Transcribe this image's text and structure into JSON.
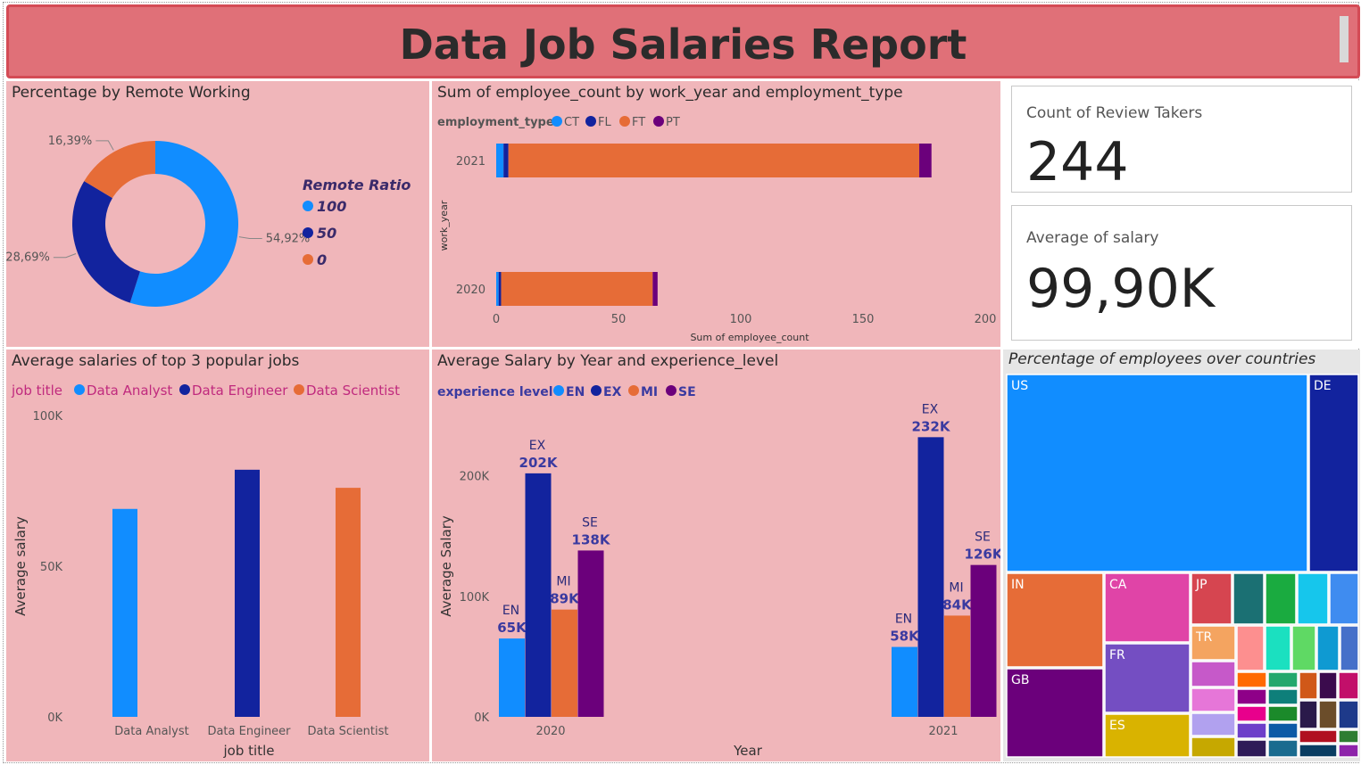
{
  "header": {
    "title": "Data Job Salaries Report"
  },
  "panels": {
    "remote": {
      "title": "Percentage by Remote Working"
    },
    "employment": {
      "title": "Sum of employee_count by work_year and employment_type"
    },
    "top_jobs": {
      "title": "Average salaries of top 3 popular jobs"
    },
    "salary_year": {
      "title": "Average Salary by Year and experience_level"
    },
    "countries": {
      "title": "Percentage of employees over countries"
    }
  },
  "cards": {
    "review_takers": {
      "label": "Count of Review Takers",
      "value": "244"
    },
    "avg_salary": {
      "label": "Average of salary",
      "value": "99,90K"
    }
  },
  "colors": {
    "blue": "#118dff",
    "navy": "#12239e",
    "orange": "#e66c37",
    "purple": "#6b007b",
    "panel": "#f0b6ba",
    "title_bg": "#e07078"
  },
  "chart_data": [
    {
      "id": "remote",
      "type": "pie",
      "legend_title": "Remote Ratio",
      "slices": [
        {
          "name": "100",
          "value": 54.92,
          "label": "54,92%",
          "color": "#118dff"
        },
        {
          "name": "50",
          "value": 28.69,
          "label": "28,69%",
          "color": "#12239e"
        },
        {
          "name": "0",
          "value": 16.39,
          "label": "16,39%",
          "color": "#e66c37"
        }
      ]
    },
    {
      "id": "employment",
      "type": "bar",
      "orientation": "horizontal",
      "stacked": true,
      "legend_title": "employment_type",
      "categories": [
        "2021",
        "2020"
      ],
      "series": [
        {
          "name": "CT",
          "values": [
            3,
            1
          ],
          "color": "#118dff"
        },
        {
          "name": "FL",
          "values": [
            2,
            1
          ],
          "color": "#12239e"
        },
        {
          "name": "FT",
          "values": [
            168,
            62
          ],
          "color": "#e66c37"
        },
        {
          "name": "PT",
          "values": [
            5,
            2
          ],
          "color": "#6b007b"
        }
      ],
      "xlabel": "Sum of employee_count",
      "ylabel": "work_year",
      "xlim": [
        0,
        200
      ],
      "xticks": [
        "0",
        "50",
        "100",
        "150",
        "200"
      ]
    },
    {
      "id": "top_jobs",
      "type": "bar",
      "legend_title": "job title",
      "categories": [
        "Data Analyst",
        "Data Engineer",
        "Data Scientist"
      ],
      "values": [
        69000,
        82000,
        76000
      ],
      "colors": [
        "#118dff",
        "#12239e",
        "#e66c37"
      ],
      "legend": [
        "Data Analyst",
        "Data Engineer",
        "Data Scientist"
      ],
      "xlabel": "job title",
      "ylabel": "Average salary",
      "ylim": [
        0,
        100000
      ],
      "yticks": [
        "0K",
        "50K",
        "100K"
      ]
    },
    {
      "id": "salary_year",
      "type": "bar",
      "legend_title": "experience level",
      "categories": [
        "2020",
        "2021"
      ],
      "series": [
        {
          "name": "EN",
          "values": [
            65,
            58
          ],
          "labels": [
            "65K",
            "58K"
          ],
          "color": "#118dff"
        },
        {
          "name": "EX",
          "values": [
            202,
            232
          ],
          "labels": [
            "202K",
            "232K"
          ],
          "color": "#12239e"
        },
        {
          "name": "MI",
          "values": [
            89,
            84
          ],
          "labels": [
            "89K",
            "84K"
          ],
          "color": "#e66c37"
        },
        {
          "name": "SE",
          "values": [
            138,
            126
          ],
          "labels": [
            "138K",
            "126K"
          ],
          "color": "#6b007b"
        }
      ],
      "xlabel": "Year",
      "ylabel": "Average Salary",
      "ylim": [
        0,
        250
      ],
      "yticks": [
        "0K",
        "100K",
        "200K"
      ]
    },
    {
      "id": "countries",
      "type": "heatmap",
      "note": "treemap",
      "cells": [
        {
          "name": "US",
          "color": "#118dff"
        },
        {
          "name": "DE",
          "color": "#12239e"
        },
        {
          "name": "IN",
          "color": "#e66c37"
        },
        {
          "name": "CA",
          "color": "#e044a7"
        },
        {
          "name": "JP",
          "color": "#d64550"
        },
        {
          "name": "GB",
          "color": "#6b007b"
        },
        {
          "name": "FR",
          "color": "#744ec2"
        },
        {
          "name": "TR",
          "color": "#f4a460"
        },
        {
          "name": "ES",
          "color": "#d9b300"
        }
      ]
    }
  ]
}
